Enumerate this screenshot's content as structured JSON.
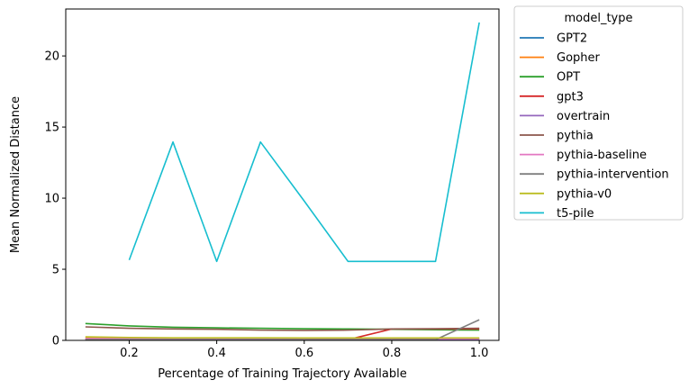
{
  "chart_data": {
    "type": "line",
    "xlabel": "Percentage of Training Trajectory Available",
    "ylabel": "Mean Normalized Distance",
    "xlim": [
      0.055,
      1.045
    ],
    "ylim": [
      0,
      23.3
    ],
    "xticks": [
      "0.2",
      "0.4",
      "0.6",
      "0.8",
      "1.0"
    ],
    "xtick_values": [
      0.2,
      0.4,
      0.6,
      0.8,
      1.0
    ],
    "yticks": [
      "0",
      "5",
      "10",
      "15",
      "20"
    ],
    "ytick_values": [
      0,
      5,
      10,
      15,
      20
    ],
    "grid": false,
    "legend": {
      "title": "model_type",
      "placement": "outside-right"
    },
    "series": [
      {
        "name": "GPT2",
        "color": "#1f77b4",
        "x": [
          0.1,
          0.2,
          0.3,
          0.4,
          0.5,
          0.6,
          0.7,
          0.8,
          0.9,
          1.0
        ],
        "y": [
          0.1,
          0.1,
          0.1,
          0.1,
          0.1,
          0.1,
          0.1,
          0.1,
          0.1,
          0.1
        ]
      },
      {
        "name": "Gopher",
        "color": "#ff7f0e",
        "x": [
          0.1,
          0.2,
          0.3,
          0.4,
          0.5,
          0.6,
          0.7,
          0.8,
          0.9,
          1.0
        ],
        "y": [
          0.2,
          0.15,
          0.15,
          0.15,
          0.12,
          0.12,
          0.12,
          0.12,
          0.12,
          0.12
        ]
      },
      {
        "name": "OPT",
        "color": "#2ca02c",
        "x": [
          0.1,
          0.2,
          0.3,
          0.4,
          0.5,
          0.6,
          0.7,
          0.8,
          0.9,
          1.0
        ],
        "y": [
          1.18,
          1.02,
          0.92,
          0.88,
          0.85,
          0.82,
          0.8,
          0.78,
          0.75,
          0.72
        ]
      },
      {
        "name": "gpt3",
        "color": "#d62728",
        "x": [
          0.1,
          0.2,
          0.3,
          0.4,
          0.5,
          0.6,
          0.7,
          0.8,
          0.9,
          1.0
        ],
        "y": [
          0.05,
          0.05,
          0.05,
          0.05,
          0.05,
          0.05,
          0.05,
          0.8,
          0.8,
          0.8
        ]
      },
      {
        "name": "overtrain",
        "color": "#9467bd",
        "x": [
          0.1,
          0.2,
          0.3,
          0.4,
          0.5,
          0.6,
          0.7,
          0.8,
          0.9,
          1.0
        ],
        "y": [
          0.08,
          0.08,
          0.08,
          0.08,
          0.08,
          0.08,
          0.08,
          0.08,
          0.08,
          0.08
        ]
      },
      {
        "name": "pythia",
        "color": "#8c564b",
        "x": [
          0.1,
          0.2,
          0.3,
          0.4,
          0.5,
          0.6,
          0.7,
          0.8,
          0.9,
          1.0
        ],
        "y": [
          0.95,
          0.85,
          0.8,
          0.78,
          0.72,
          0.7,
          0.72,
          0.8,
          0.82,
          0.85
        ]
      },
      {
        "name": "pythia-baseline",
        "color": "#e377c2",
        "x": [
          0.1,
          0.2,
          0.3,
          0.4,
          0.5,
          0.6,
          0.7,
          0.8,
          0.9,
          1.0
        ],
        "y": [
          0.12,
          0.12,
          0.12,
          0.12,
          0.12,
          0.12,
          0.12,
          0.12,
          0.12,
          0.12
        ]
      },
      {
        "name": "pythia-intervention",
        "color": "#7f7f7f",
        "x": [
          0.1,
          0.2,
          0.3,
          0.4,
          0.5,
          0.6,
          0.7,
          0.8,
          0.9,
          1.0
        ],
        "y": [
          0.05,
          0.05,
          0.05,
          0.05,
          0.05,
          0.05,
          0.05,
          0.05,
          0.05,
          1.45
        ]
      },
      {
        "name": "pythia-v0",
        "color": "#bcbd22",
        "x": [
          0.1,
          0.2,
          0.3,
          0.4,
          0.5,
          0.6,
          0.7,
          0.8,
          0.9,
          1.0
        ],
        "y": [
          0.25,
          0.2,
          0.18,
          0.18,
          0.18,
          0.17,
          0.17,
          0.17,
          0.17,
          0.17
        ]
      },
      {
        "name": "t5-pile",
        "color": "#17becf",
        "x": [
          0.2,
          0.3,
          0.4,
          0.5,
          0.6,
          0.7,
          0.8,
          0.9,
          1.0
        ],
        "y": [
          5.65,
          13.95,
          5.55,
          13.95,
          9.8,
          5.55,
          5.55,
          5.55,
          22.35
        ]
      }
    ]
  }
}
